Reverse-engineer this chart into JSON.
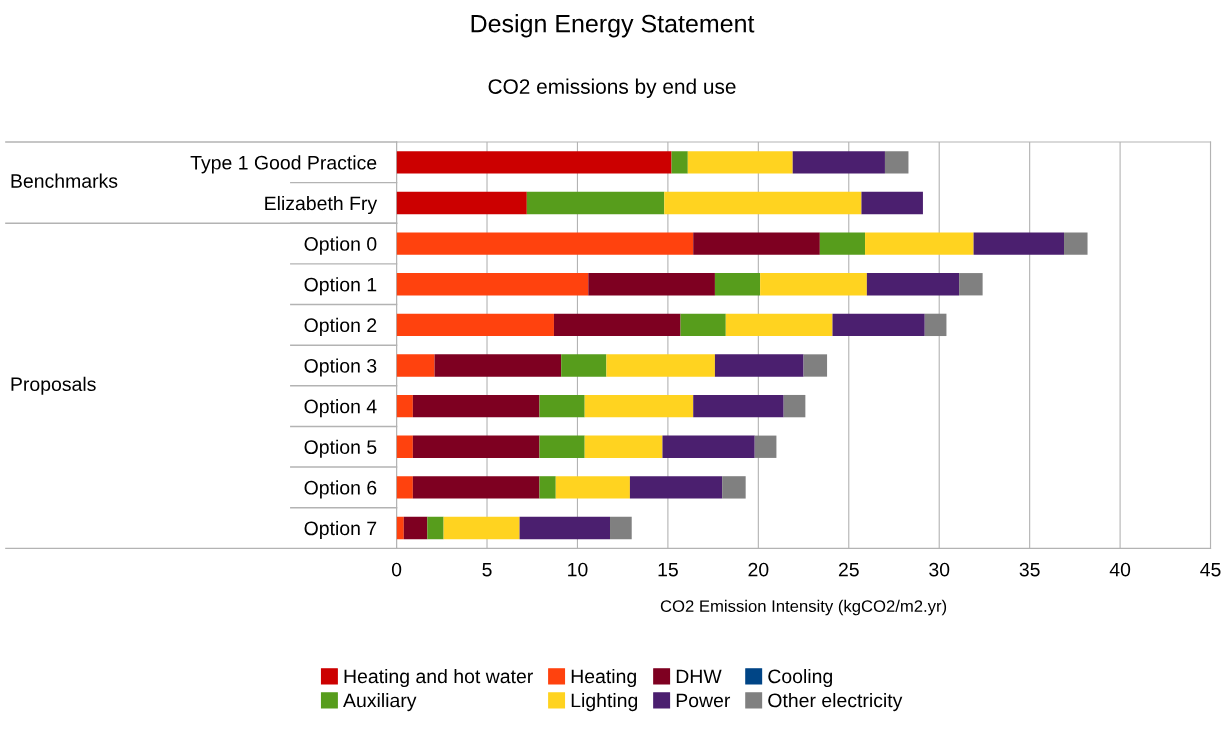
{
  "chart_data": {
    "type": "bar",
    "orientation": "horizontal",
    "stacked": true,
    "title": "Design Energy Statement",
    "subtitle": "CO2 emissions by end use",
    "xlabel": "CO2 Emission Intensity (kgCO2/m2.yr)",
    "categories": [
      "Type 1 Good Practice",
      "Elizabeth Fry",
      "Option 0",
      "Option 1",
      "Option 2",
      "Option 3",
      "Option 4",
      "Option 5",
      "Option 6",
      "Option 7"
    ],
    "annotations": [
      "Benchmarks",
      "Proposals"
    ],
    "series": [
      {
        "name": "Heating and hot water",
        "color": "#cc0000",
        "values": [
          15.2,
          7.2,
          0,
          0,
          0,
          0,
          0,
          0,
          0,
          0
        ]
      },
      {
        "name": "Heating",
        "color": "#ff420e",
        "values": [
          0,
          0,
          16.4,
          10.6,
          8.7,
          2.1,
          0.9,
          0.9,
          0.9,
          0.4
        ]
      },
      {
        "name": "DHW",
        "color": "#7e0021",
        "values": [
          0,
          0,
          7.0,
          7.0,
          7.0,
          7.0,
          7.0,
          7.0,
          7.0,
          1.3
        ]
      },
      {
        "name": "Cooling",
        "color": "#004586",
        "values": [
          0,
          0,
          0,
          0,
          0,
          0,
          0,
          0,
          0,
          0
        ]
      },
      {
        "name": "Auxiliary",
        "color": "#579d1c",
        "values": [
          0.9,
          7.6,
          2.5,
          2.5,
          2.5,
          2.5,
          2.5,
          2.5,
          0.9,
          0.9
        ]
      },
      {
        "name": "Lighting",
        "color": "#ffd320",
        "values": [
          5.8,
          10.9,
          6.0,
          5.9,
          5.9,
          6.0,
          6.0,
          4.3,
          4.1,
          4.2
        ]
      },
      {
        "name": "Power",
        "color": "#4b1f6f",
        "values": [
          5.1,
          3.4,
          5.0,
          5.1,
          5.1,
          4.9,
          5.0,
          5.1,
          5.1,
          5.0
        ]
      },
      {
        "name": "Other electricity",
        "color": "#808080",
        "values": [
          1.3,
          0,
          1.3,
          1.3,
          1.2,
          1.3,
          1.2,
          1.2,
          1.3,
          1.2
        ]
      }
    ],
    "xlim": [
      0,
      45
    ],
    "xticks": [
      0,
      5,
      10,
      15,
      20,
      25,
      30,
      35,
      40,
      45
    ],
    "grid": "x",
    "legend": "bottom"
  }
}
